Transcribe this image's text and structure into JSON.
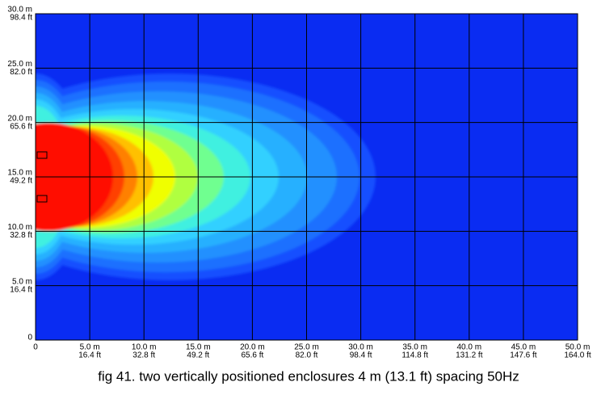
{
  "chart_data": {
    "type": "field",
    "caption": "fig 41. two vertically positioned enclosures 4 m (13.1 ft) spacing 50Hz",
    "xlim": [
      0,
      50
    ],
    "ylim": [
      0,
      30
    ],
    "xticks": [
      0,
      {
        "value": 5,
        "label": "5.0 m",
        "label_ft": "16.4 ft"
      },
      {
        "value": 10,
        "label": "10.0 m",
        "label_ft": "32.8 ft"
      },
      {
        "value": 15,
        "label": "15.0 m",
        "label_ft": "49.2 ft"
      },
      {
        "value": 20,
        "label": "20.0 m",
        "label_ft": "65.6 ft"
      },
      {
        "value": 25,
        "label": "25.0 m",
        "label_ft": "82.0 ft"
      },
      {
        "value": 30,
        "label": "30.0 m",
        "label_ft": "98.4 ft"
      },
      {
        "value": 35,
        "label": "35.0 m",
        "label_ft": "114.8 ft"
      },
      {
        "value": 40,
        "label": "40.0 m",
        "label_ft": "131.2 ft"
      },
      {
        "value": 45,
        "label": "45.0 m",
        "label_ft": "147.6 ft"
      },
      {
        "value": 50,
        "label": "50.0 m",
        "label_ft": "164.0 ft"
      }
    ],
    "yticks": [
      0,
      {
        "value": 5,
        "label": "5.0 m",
        "label_ft": "16.4 ft"
      },
      {
        "value": 10,
        "label": "10.0 m",
        "label_ft": "32.8 ft"
      },
      {
        "value": 15,
        "label": "15.0 m",
        "label_ft": "49.2 ft"
      },
      {
        "value": 20,
        "label": "20.0 m",
        "label_ft": "65.6 ft"
      },
      {
        "value": 25,
        "label": "25.0 m",
        "label_ft": "82.0 ft"
      },
      {
        "value": 30,
        "label": "30.0 m",
        "label_ft": "98.4 ft"
      }
    ],
    "grid": true
  }
}
